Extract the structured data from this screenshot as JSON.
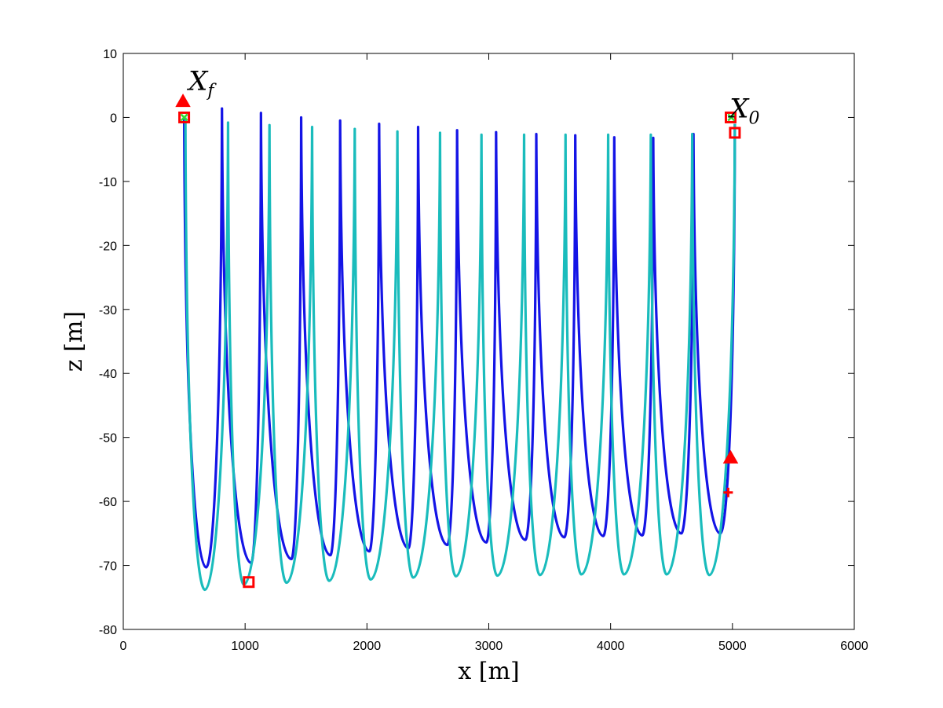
{
  "chart_data": {
    "type": "line",
    "title": "",
    "xlabel": "x [m]",
    "ylabel": "z [m]",
    "xlim": [
      0,
      6000
    ],
    "ylim": [
      -80,
      10
    ],
    "xticks": [
      0,
      1000,
      2000,
      3000,
      4000,
      5000,
      6000
    ],
    "yticks": [
      10,
      0,
      -10,
      -20,
      -30,
      -40,
      -50,
      -60,
      -70,
      -80
    ],
    "grid": false,
    "legend": "none",
    "colors": {
      "series_dark": "#1414e6",
      "series_light": "#1abcbc",
      "markers": "#ff0000",
      "markers_x": "#33dd33"
    },
    "series": [
      {
        "points": [
          [
            5020,
            0
          ],
          [
            4990,
            -40
          ],
          [
            4960,
            -58
          ],
          [
            4930,
            -63
          ],
          [
            4890,
            -65
          ],
          [
            4780,
            -55
          ],
          [
            4720,
            -35
          ],
          [
            4680,
            -2.6
          ]
        ],
        "peaks_x": [
          5020,
          4680,
          4350,
          4030,
          3710,
          3390,
          3060,
          2740,
          2420,
          2100,
          1780,
          1460,
          1130,
          810,
          500
        ],
        "peaks_z": [
          -1,
          -2.6,
          -3.2,
          -3.1,
          -2.8,
          -2.6,
          -2.3,
          -2.0,
          -1.5,
          -1.0,
          -0.5,
          0.0,
          0.7,
          1.4,
          0.0
        ],
        "troughs_x": [
          4900,
          4580,
          4260,
          3940,
          3620,
          3300,
          2980,
          2660,
          2340,
          2020,
          1700,
          1380,
          1050,
          680
        ],
        "troughs_z": [
          -65,
          -65,
          -65.3,
          -65.4,
          -65.6,
          -66.0,
          -66.4,
          -66.8,
          -67.3,
          -67.8,
          -68.4,
          -69.0,
          -69.6,
          -70.3
        ]
      },
      {
        "peaks_x": [
          5020,
          4670,
          4330,
          3980,
          3630,
          3290,
          2940,
          2600,
          2250,
          1900,
          1550,
          1200,
          860,
          510
        ],
        "peaks_z": [
          -1,
          -2.6,
          -2.7,
          -2.7,
          -2.7,
          -2.7,
          -2.7,
          -2.4,
          -2.2,
          -1.8,
          -1.5,
          -1.2,
          -0.8,
          0.0
        ],
        "troughs_x": [
          4810,
          4460,
          4110,
          3760,
          3420,
          3070,
          2730,
          2380,
          2030,
          1690,
          1340,
          990,
          670
        ],
        "troughs_z": [
          -71.5,
          -71.4,
          -71.4,
          -71.4,
          -71.5,
          -71.6,
          -71.7,
          -71.9,
          -72.2,
          -72.4,
          -72.7,
          -73.0,
          -73.8
        ]
      }
    ],
    "markers": [
      {
        "shape": "square",
        "x": 1030,
        "z": -72.6
      },
      {
        "shape": "square",
        "x": 500,
        "z": 0
      },
      {
        "shape": "square",
        "x": 4985,
        "z": 0
      },
      {
        "shape": "square",
        "x": 5020,
        "z": -2.4
      },
      {
        "shape": "triangle",
        "x": 490,
        "z": 2.5
      },
      {
        "shape": "triangle",
        "x": 4985,
        "z": -53.2
      },
      {
        "shape": "plus",
        "x": 4965,
        "z": -58.6
      },
      {
        "shape": "cross",
        "x": 500,
        "z": 0
      },
      {
        "shape": "cross",
        "x": 4990,
        "z": 0
      }
    ],
    "annotations": [
      {
        "text": "X",
        "sub": "f",
        "x": 640,
        "z": 4.3
      },
      {
        "text": "X",
        "sub": "0",
        "x": 5100,
        "z": 0
      }
    ]
  }
}
